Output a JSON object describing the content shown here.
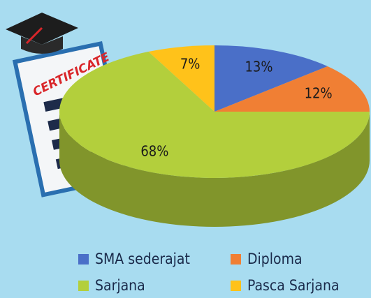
{
  "chart_data": {
    "type": "pie",
    "annotation": "CERTIFICATE",
    "categories": [
      "SMA sederajat",
      "Diploma",
      "Sarjana",
      "Pasca Sarjana"
    ],
    "values": [
      13,
      12,
      68,
      7
    ],
    "value_labels": [
      "13%",
      "12%",
      "68%",
      "7%"
    ],
    "colors": [
      "#4a6fc8",
      "#f07f34",
      "#b3cf3c",
      "#ffc21a"
    ]
  }
}
